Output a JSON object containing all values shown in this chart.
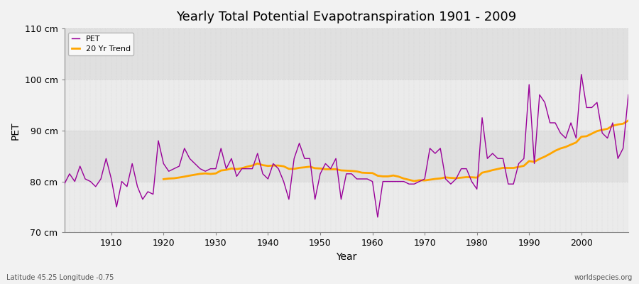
{
  "title": "Yearly Total Potential Evapotranspiration 1901 - 2009",
  "xlabel": "Year",
  "ylabel": "PET",
  "footnote_left": "Latitude 45.25 Longitude -0.75",
  "footnote_right": "worldspecies.org",
  "ylim": [
    70,
    110
  ],
  "yticks": [
    70,
    80,
    90,
    100,
    110
  ],
  "ytick_labels": [
    "70 cm",
    "80 cm",
    "90 cm",
    "100 cm",
    "110 cm"
  ],
  "xlim": [
    1901,
    2009
  ],
  "xticks": [
    1910,
    1920,
    1930,
    1940,
    1950,
    1960,
    1970,
    1980,
    1990,
    2000
  ],
  "pet_color": "#990099",
  "trend_color": "#FFA500",
  "bg_color": "#f2f2f2",
  "plot_bg_color": "#e8e8e8",
  "band_light": "#ebebeb",
  "band_dark": "#e0e0e0",
  "grid_color": "#cccccc",
  "legend_label_pet": "PET",
  "legend_label_trend": "20 Yr Trend",
  "trend_window": 20,
  "years": [
    1901,
    1902,
    1903,
    1904,
    1905,
    1906,
    1907,
    1908,
    1909,
    1910,
    1911,
    1912,
    1913,
    1914,
    1915,
    1916,
    1917,
    1918,
    1919,
    1920,
    1921,
    1922,
    1923,
    1924,
    1925,
    1926,
    1927,
    1928,
    1929,
    1930,
    1931,
    1932,
    1933,
    1934,
    1935,
    1936,
    1937,
    1938,
    1939,
    1940,
    1941,
    1942,
    1943,
    1944,
    1945,
    1946,
    1947,
    1948,
    1949,
    1950,
    1951,
    1952,
    1953,
    1954,
    1955,
    1956,
    1957,
    1958,
    1959,
    1960,
    1961,
    1962,
    1963,
    1964,
    1965,
    1966,
    1967,
    1968,
    1969,
    1970,
    1971,
    1972,
    1973,
    1974,
    1975,
    1976,
    1977,
    1978,
    1979,
    1980,
    1981,
    1982,
    1983,
    1984,
    1985,
    1986,
    1987,
    1988,
    1989,
    1990,
    1991,
    1992,
    1993,
    1994,
    1995,
    1996,
    1997,
    1998,
    1999,
    2000,
    2001,
    2002,
    2003,
    2004,
    2005,
    2006,
    2007,
    2008,
    2009
  ],
  "pet_values": [
    79.5,
    81.5,
    80.0,
    83.0,
    80.5,
    80.0,
    79.0,
    80.5,
    84.5,
    80.5,
    75.0,
    80.0,
    79.0,
    83.5,
    79.0,
    76.5,
    78.0,
    77.5,
    88.0,
    83.5,
    82.0,
    82.5,
    83.0,
    86.5,
    84.5,
    83.5,
    82.5,
    82.0,
    82.5,
    82.5,
    86.5,
    82.5,
    84.5,
    81.0,
    82.5,
    82.5,
    82.5,
    85.5,
    81.5,
    80.5,
    83.5,
    82.5,
    80.0,
    76.5,
    84.5,
    87.5,
    84.5,
    84.5,
    76.5,
    81.5,
    83.5,
    82.5,
    84.5,
    76.5,
    81.5,
    81.5,
    80.5,
    80.5,
    80.5,
    80.0,
    73.0,
    80.0,
    80.0,
    80.0,
    80.0,
    80.0,
    79.5,
    79.5,
    80.0,
    80.5,
    86.5,
    85.5,
    86.5,
    80.5,
    79.5,
    80.5,
    82.5,
    82.5,
    80.0,
    78.5,
    92.5,
    84.5,
    85.5,
    84.5,
    84.5,
    79.5,
    79.5,
    83.5,
    84.5,
    99.0,
    83.5,
    97.0,
    95.5,
    91.5,
    91.5,
    89.5,
    88.5,
    91.5,
    88.5,
    101.0,
    94.5,
    94.5,
    95.5,
    89.5,
    88.5,
    91.5,
    84.5,
    86.5,
    97.0
  ]
}
